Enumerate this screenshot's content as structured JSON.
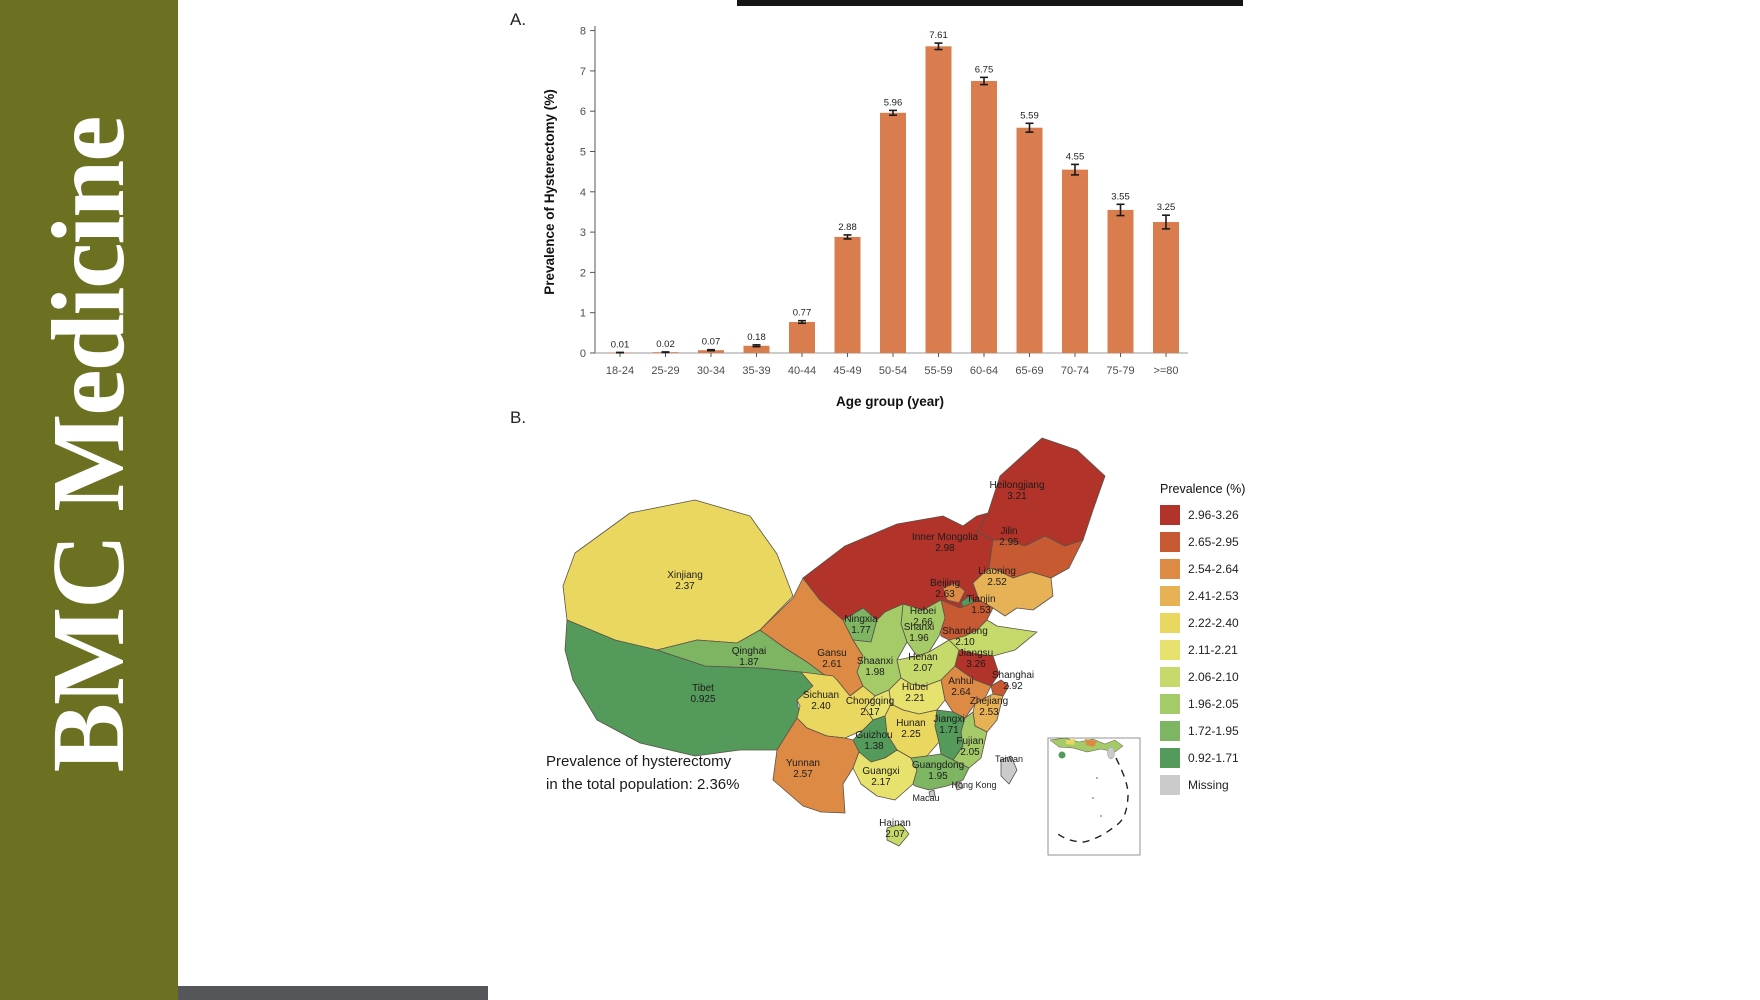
{
  "banner": {
    "journal_title": "BMC Medicine",
    "background_color": "#6c7122",
    "text_color": "#ffffff"
  },
  "figure": {
    "panel_a_label": "A.",
    "panel_b_label": "B.",
    "caption": {
      "line1": "Prevalence of hysterectomy",
      "line2": "in the total population: 2.36%"
    }
  },
  "chart_data": [
    {
      "type": "bar",
      "title": "",
      "xlabel": "Age group (year)",
      "ylabel": "Prevalence of Hysterectomy (%)",
      "ylim": [
        0,
        8
      ],
      "yticks": [
        0,
        1,
        2,
        3,
        4,
        5,
        6,
        7,
        8
      ],
      "grid": false,
      "bar_color": "#d97c4e",
      "error_bar_color": "#1a1a1a",
      "categories": [
        "18-24",
        "25-29",
        "30-34",
        "35-39",
        "40-44",
        "45-49",
        "50-54",
        "55-59",
        "60-64",
        "65-69",
        "70-74",
        "75-79",
        ">=80"
      ],
      "values": [
        0.01,
        0.02,
        0.07,
        0.18,
        0.77,
        2.88,
        5.96,
        7.61,
        6.75,
        5.59,
        4.55,
        3.55,
        3.25
      ],
      "value_labels": [
        "0.01",
        "0.02",
        "0.07",
        "0.18",
        "0.77",
        "2.88",
        "5.96",
        "7.61",
        "6.75",
        "5.59",
        "4.55",
        "3.55",
        "3.25"
      ],
      "errors": [
        0.004,
        0.006,
        0.012,
        0.022,
        0.032,
        0.05,
        0.06,
        0.08,
        0.09,
        0.11,
        0.13,
        0.14,
        0.17
      ]
    },
    {
      "type": "heatmap",
      "subtype": "choropleth-map-china",
      "legend_title": "Prevalence (%)",
      "legend": [
        {
          "range": "2.96-3.26",
          "color": "#b23329"
        },
        {
          "range": "2.65-2.95",
          "color": "#c85a33"
        },
        {
          "range": "2.54-2.64",
          "color": "#dd8a45"
        },
        {
          "range": "2.41-2.53",
          "color": "#e7b155"
        },
        {
          "range": "2.22-2.40",
          "color": "#ead75f"
        },
        {
          "range": "2.11-2.21",
          "color": "#e6e26d"
        },
        {
          "range": "2.06-2.10",
          "color": "#c6d96b"
        },
        {
          "range": "1.96-2.05",
          "color": "#a5cb69"
        },
        {
          "range": "1.72-1.95",
          "color": "#7db563"
        },
        {
          "range": "0.92-1.71",
          "color": "#549b5b"
        },
        {
          "range": "Missing",
          "color": "#cbcbcb"
        }
      ],
      "regions": [
        {
          "id": "xj",
          "name": "Xinjiang",
          "value": "2.37",
          "color": "#ead75f"
        },
        {
          "id": "xz",
          "name": "Tibet",
          "value": "0.925",
          "color": "#549b5b"
        },
        {
          "id": "qh",
          "name": "Qinghai",
          "value": "1.87",
          "color": "#7db563"
        },
        {
          "id": "gs",
          "name": "Gansu",
          "value": "2.61",
          "color": "#dd8a45"
        },
        {
          "id": "nx",
          "name": "Ningxia",
          "value": "1.77",
          "color": "#7db563"
        },
        {
          "id": "im",
          "name": "Inner Mongolia",
          "value": "2.98",
          "color": "#b23329"
        },
        {
          "id": "hlj",
          "name": "Heilongjiang",
          "value": "3.21",
          "color": "#b23329"
        },
        {
          "id": "jl",
          "name": "Jilin",
          "value": "2.95",
          "color": "#c85a33"
        },
        {
          "id": "ln",
          "name": "Liaoning",
          "value": "2.52",
          "color": "#e7b155"
        },
        {
          "id": "bj",
          "name": "Beijing",
          "value": "2.63",
          "color": "#dd8a45"
        },
        {
          "id": "tj",
          "name": "Tianjin",
          "value": "1.53",
          "color": "#549b5b"
        },
        {
          "id": "he",
          "name": "Hebei",
          "value": "2.66",
          "color": "#c85a33"
        },
        {
          "id": "sx",
          "name": "Shanxi",
          "value": "1.96",
          "color": "#a5cb69"
        },
        {
          "id": "sd",
          "name": "Shandong",
          "value": "2.10",
          "color": "#c6d96b"
        },
        {
          "id": "sn",
          "name": "Shaanxi",
          "value": "1.98",
          "color": "#a5cb69"
        },
        {
          "id": "hen",
          "name": "Henan",
          "value": "2.07",
          "color": "#c6d96b"
        },
        {
          "id": "js",
          "name": "Jiangsu",
          "value": "3.26",
          "color": "#b23329"
        },
        {
          "id": "sh",
          "name": "Shanghai",
          "value": "2.92",
          "color": "#c85a33"
        },
        {
          "id": "ah",
          "name": "Anhui",
          "value": "2.64",
          "color": "#dd8a45"
        },
        {
          "id": "zj",
          "name": "Zhejiang",
          "value": "2.53",
          "color": "#e7b155"
        },
        {
          "id": "hb",
          "name": "Hubei",
          "value": "2.21",
          "color": "#e6e26d"
        },
        {
          "id": "cq",
          "name": "Chongqing",
          "value": "2.17",
          "color": "#e6e26d"
        },
        {
          "id": "sc",
          "name": "Sichuan",
          "value": "2.40",
          "color": "#ead75f"
        },
        {
          "id": "hun",
          "name": "Hunan",
          "value": "2.25",
          "color": "#ead75f"
        },
        {
          "id": "jx",
          "name": "Jiangxi",
          "value": "1.71",
          "color": "#549b5b"
        },
        {
          "id": "fj",
          "name": "Fujian",
          "value": "2.05",
          "color": "#a5cb69"
        },
        {
          "id": "gz",
          "name": "Guizhou",
          "value": "1.38",
          "color": "#549b5b"
        },
        {
          "id": "yn",
          "name": "Yunnan",
          "value": "2.57",
          "color": "#dd8a45"
        },
        {
          "id": "gx",
          "name": "Guangxi",
          "value": "2.17",
          "color": "#e6e26d"
        },
        {
          "id": "gd",
          "name": "Guangdong",
          "value": "1.95",
          "color": "#7db563"
        },
        {
          "id": "han",
          "name": "Hainan",
          "value": "2.07",
          "color": "#c6d96b"
        },
        {
          "id": "tw",
          "name": "Taiwan",
          "value": null,
          "color": "#cbcbcb"
        },
        {
          "id": "hk",
          "name": "Hong Kong",
          "value": null,
          "color": "#cbcbcb"
        },
        {
          "id": "mo",
          "name": "Macau",
          "value": null,
          "color": "#cbcbcb"
        }
      ]
    }
  ]
}
